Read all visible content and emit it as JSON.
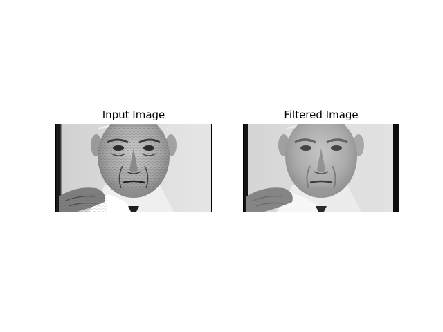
{
  "figure": {
    "background": "#ffffff",
    "panels": [
      {
        "title": "Input Image",
        "variant": "sharp"
      },
      {
        "title": "Filtered Image",
        "variant": "smoothed"
      }
    ]
  }
}
